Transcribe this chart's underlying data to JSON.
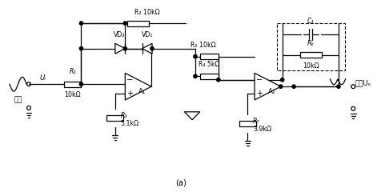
{
  "title": "(a)",
  "bg_color": "#ffffff",
  "line_color": "#000000",
  "labels": {
    "input_label": "输入",
    "output_label": "输出Uₒ",
    "ui_label": "Uᵢ",
    "a1_label": "A₁",
    "a2_label": "A₂",
    "r1_label": "R₁",
    "r1_val": "10kΩ",
    "r2_label": "R₂ 10kΩ",
    "r3_label": "R₃",
    "r3_val": "5.1kΩ",
    "r4_label": "R₄ 5kΩ",
    "r5_label": "R₅ 10kΩ",
    "r6_label": "R₆",
    "r6_val": "10kΩ",
    "r7_label": "R₇",
    "r7_val": "3.9kΩ",
    "c1_label": "C₁",
    "vd1_label": "VD₁",
    "vd2_label": "VD₂"
  }
}
